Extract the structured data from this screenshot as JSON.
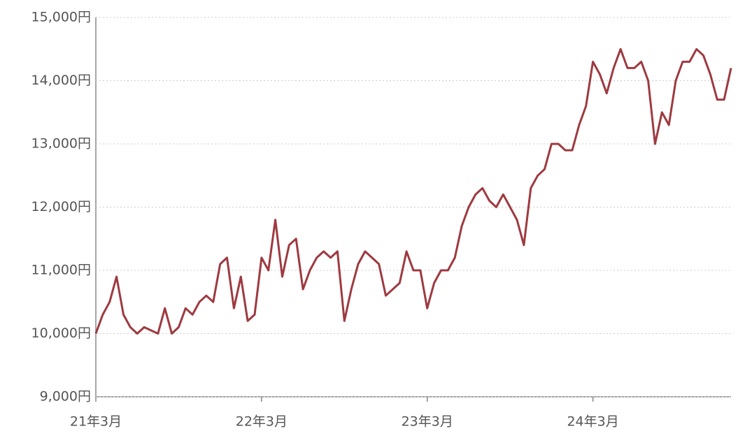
{
  "chart_data": {
    "type": "line",
    "categories": [
      "21年3月",
      null,
      null,
      null,
      null,
      null,
      null,
      null,
      null,
      null,
      null,
      null,
      null,
      null,
      null,
      null,
      null,
      null,
      null,
      null,
      null,
      null,
      null,
      null,
      "22年3月",
      null,
      null,
      null,
      null,
      null,
      null,
      null,
      null,
      null,
      null,
      null,
      null,
      null,
      null,
      null,
      null,
      null,
      null,
      null,
      null,
      null,
      null,
      null,
      "23年3月",
      null,
      null,
      null,
      null,
      null,
      null,
      null,
      null,
      null,
      null,
      null,
      null,
      null,
      null,
      null,
      null,
      null,
      null,
      null,
      null,
      null,
      null,
      null,
      "24年3月",
      null,
      null,
      null,
      null,
      null,
      null,
      null,
      null,
      null,
      null,
      null,
      null,
      null,
      null,
      null,
      null,
      null,
      null,
      null,
      null
    ],
    "values": [
      10000,
      10300,
      10500,
      10900,
      10300,
      10100,
      10000,
      10100,
      10050,
      10000,
      10400,
      10000,
      10100,
      10400,
      10300,
      10500,
      10600,
      10500,
      11100,
      11200,
      10400,
      10900,
      10200,
      10300,
      11200,
      11000,
      11800,
      10900,
      11400,
      11500,
      10700,
      11000,
      11200,
      11300,
      11200,
      11300,
      10200,
      10700,
      11100,
      11300,
      11200,
      11100,
      10600,
      10700,
      10800,
      11300,
      11000,
      11000,
      10400,
      10800,
      11000,
      11000,
      11200,
      11700,
      12000,
      12200,
      12300,
      12100,
      12000,
      12200,
      12000,
      11800,
      11400,
      12300,
      12500,
      12600,
      13000,
      13000,
      12900,
      12900,
      13300,
      13600,
      14300,
      14100,
      13800,
      14200,
      14500,
      14200,
      14200,
      14300,
      14000,
      13000,
      13500,
      13300,
      14000,
      14300,
      14300,
      14500,
      14400,
      14100,
      13700,
      13700,
      14200
    ],
    "color": "#9e3a40",
    "ylim": [
      9000,
      15000
    ],
    "yticks": [
      {
        "value": 9000,
        "label": "9,000円"
      },
      {
        "value": 10000,
        "label": "10,000円"
      },
      {
        "value": 11000,
        "label": "11,000円"
      },
      {
        "value": 12000,
        "label": "12,000円"
      },
      {
        "value": 13000,
        "label": "13,000円"
      },
      {
        "value": 14000,
        "label": "14,000円"
      },
      {
        "value": 15000,
        "label": "15,000円"
      }
    ],
    "grid": true
  }
}
